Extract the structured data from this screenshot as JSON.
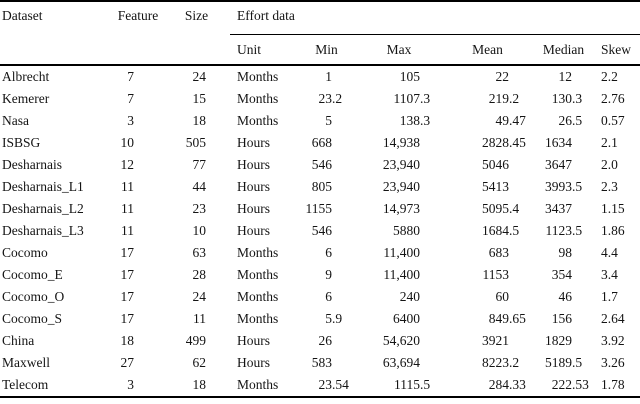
{
  "page": {
    "background": "#ffffff",
    "text_color": "#141414",
    "rule_color": "#000000"
  },
  "table": {
    "header": {
      "dataset": "Dataset",
      "feature": "Feature",
      "size": "Size",
      "effort_group": "Effort data",
      "unit": "Unit",
      "min": "Min",
      "max": "Max",
      "mean": "Mean",
      "median": "Median",
      "skew": "Skew"
    },
    "rows": [
      {
        "dataset": "Albrecht",
        "feature": "7",
        "size": "24",
        "unit": "Months",
        "min": "1",
        "max": "105",
        "mean": "22",
        "median": "12",
        "skew": "2.2"
      },
      {
        "dataset": "Kemerer",
        "feature": "7",
        "size": "15",
        "unit": "Months",
        "min": "23.2",
        "max": "1107.3",
        "mean": "219.2",
        "median": "130.3",
        "skew": "2.76"
      },
      {
        "dataset": "Nasa",
        "feature": "3",
        "size": "18",
        "unit": "Months",
        "min": "5",
        "max": "138.3",
        "mean": "49.47",
        "median": "26.5",
        "skew": "0.57"
      },
      {
        "dataset": "ISBSG",
        "feature": "10",
        "size": "505",
        "unit": "Hours",
        "min": "668",
        "max": "14,938",
        "mean": "2828.45",
        "median": "1634",
        "skew": "2.1"
      },
      {
        "dataset": "Desharnais",
        "feature": "12",
        "size": "77",
        "unit": "Hours",
        "min": "546",
        "max": "23,940",
        "mean": "5046",
        "median": "3647",
        "skew": "2.0"
      },
      {
        "dataset": "Desharnais_L1",
        "feature": "11",
        "size": "44",
        "unit": "Hours",
        "min": "805",
        "max": "23,940",
        "mean": "5413",
        "median": "3993.5",
        "skew": "2.3"
      },
      {
        "dataset": "Desharnais_L2",
        "feature": "11",
        "size": "23",
        "unit": "Hours",
        "min": "1155",
        "max": "14,973",
        "mean": "5095.4",
        "median": "3437",
        "skew": "1.15"
      },
      {
        "dataset": "Desharnais_L3",
        "feature": "11",
        "size": "10",
        "unit": "Hours",
        "min": "546",
        "max": "5880",
        "mean": "1684.5",
        "median": "1123.5",
        "skew": "1.86"
      },
      {
        "dataset": "Cocomo",
        "feature": "17",
        "size": "63",
        "unit": "Months",
        "min": "6",
        "max": "11,400",
        "mean": "683",
        "median": "98",
        "skew": "4.4"
      },
      {
        "dataset": "Cocomo_E",
        "feature": "17",
        "size": "28",
        "unit": "Months",
        "min": "9",
        "max": "11,400",
        "mean": "1153",
        "median": "354",
        "skew": "3.4"
      },
      {
        "dataset": "Cocomo_O",
        "feature": "17",
        "size": "24",
        "unit": "Months",
        "min": "6",
        "max": "240",
        "mean": "60",
        "median": "46",
        "skew": "1.7"
      },
      {
        "dataset": "Cocomo_S",
        "feature": "17",
        "size": "11",
        "unit": "Months",
        "min": "5.9",
        "max": "6400",
        "mean": "849.65",
        "median": "156",
        "skew": "2.64"
      },
      {
        "dataset": "China",
        "feature": "18",
        "size": "499",
        "unit": "Hours",
        "min": "26",
        "max": "54,620",
        "mean": "3921",
        "median": "1829",
        "skew": "3.92"
      },
      {
        "dataset": "Maxwell",
        "feature": "27",
        "size": "62",
        "unit": "Hours",
        "min": "583",
        "max": "63,694",
        "mean": "8223.2",
        "median": "5189.5",
        "skew": "3.26"
      },
      {
        "dataset": "Telecom",
        "feature": "3",
        "size": "18",
        "unit": "Months",
        "min": "23.54",
        "max": "1115.5",
        "mean": "284.33",
        "median": "222.53",
        "skew": "1.78"
      }
    ]
  }
}
